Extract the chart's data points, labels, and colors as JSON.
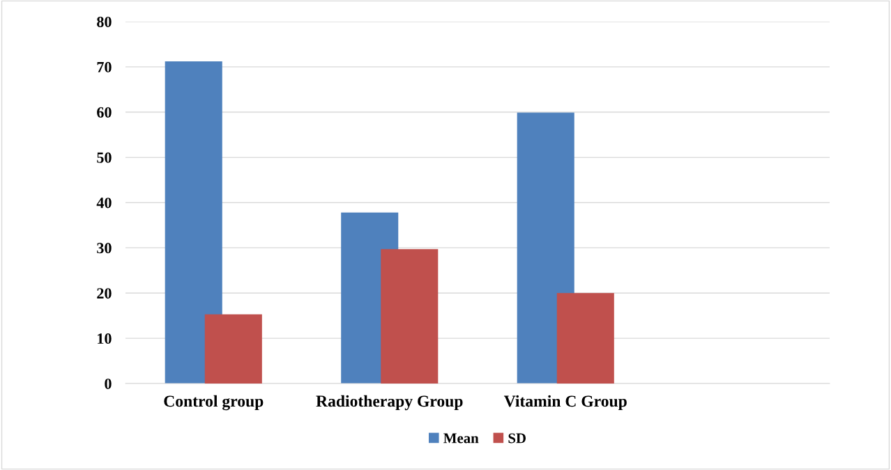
{
  "chart_data": {
    "type": "bar",
    "categories": [
      "Control group",
      "Radiotherapy Group",
      "Vitamin C Group",
      null
    ],
    "series": [
      {
        "name": "Mean",
        "color": "#4f81bd",
        "values": [
          71.2,
          37.8,
          59.9,
          null
        ]
      },
      {
        "name": "SD",
        "color": "#c0504d",
        "values": [
          15.3,
          29.7,
          20.0,
          null
        ]
      }
    ],
    "ylim": [
      0,
      80
    ],
    "yticks": [
      0,
      10,
      20,
      30,
      40,
      50,
      60,
      70,
      80
    ],
    "grid": "y",
    "legend": "bottom"
  }
}
